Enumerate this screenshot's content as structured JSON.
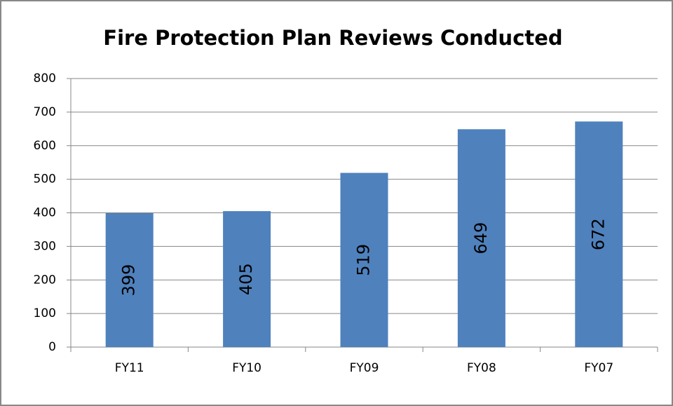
{
  "chart_data": {
    "type": "bar",
    "title": "Fire Protection Plan Reviews Conducted",
    "categories": [
      "FY11",
      "FY10",
      "FY09",
      "FY08",
      "FY07"
    ],
    "values": [
      399,
      405,
      519,
      649,
      672
    ],
    "color": "#4f81bd",
    "ylim": [
      0,
      800
    ],
    "yticks": [
      0,
      100,
      200,
      300,
      400,
      500,
      600,
      700,
      800
    ],
    "grid": true,
    "data_labels": true
  }
}
